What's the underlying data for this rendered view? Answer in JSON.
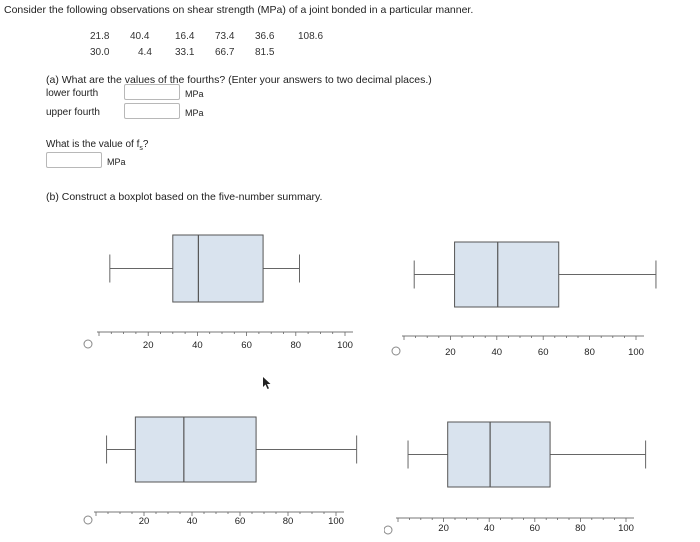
{
  "question": {
    "title": "Consider the following observations on shear strength (MPa) of a joint bonded in a particular manner.",
    "observations_row1": [
      "21.8",
      "40.4",
      "16.4",
      "73.4",
      "36.6",
      "108.6"
    ],
    "observations_row2": [
      "30.0",
      "4.4",
      "33.1",
      "66.7",
      "81.5"
    ]
  },
  "part_a": {
    "prompt": "(a) What are the values of the fourths? (Enter your answers to two decimal places.)",
    "lower_fourth_label": "lower fourth",
    "upper_fourth_label": "upper fourth",
    "unit": "MPa",
    "lower_fourth_value": "",
    "upper_fourth_value": "",
    "fs_prompt_prefix": "What is the value of f",
    "fs_prompt_sub": "s",
    "fs_prompt_suffix": "?",
    "fs_value": ""
  },
  "part_b": {
    "prompt": "(b) Construct a boxplot based on the five-number summary."
  },
  "chart_data": [
    {
      "type": "boxplot",
      "id": "option-1",
      "whisker_low": 4.4,
      "q1": 30.0,
      "median": 40.4,
      "q3": 66.7,
      "whisker_high": 81.5,
      "outliers": [],
      "ticks": [
        "20",
        "40",
        "60",
        "80",
        "100"
      ]
    },
    {
      "type": "boxplot",
      "id": "option-2",
      "whisker_low": 4.4,
      "q1": 21.8,
      "median": 40.4,
      "q3": 66.7,
      "whisker_high": 108.6,
      "outliers": [],
      "ticks": [
        "20",
        "40",
        "60",
        "80",
        "100"
      ]
    },
    {
      "type": "boxplot",
      "id": "option-3",
      "whisker_low": 4.4,
      "q1": 16.4,
      "median": 36.6,
      "q3": 66.7,
      "whisker_high": 108.6,
      "outliers": [],
      "ticks": [
        "20",
        "40",
        "60",
        "80",
        "100"
      ]
    },
    {
      "type": "boxplot",
      "id": "option-4",
      "whisker_low": 4.4,
      "q1": 21.8,
      "median": 40.4,
      "q3": 66.7,
      "whisker_high": 108.6,
      "outliers": [],
      "ticks": [
        "20",
        "40",
        "60",
        "80",
        "100"
      ]
    }
  ]
}
